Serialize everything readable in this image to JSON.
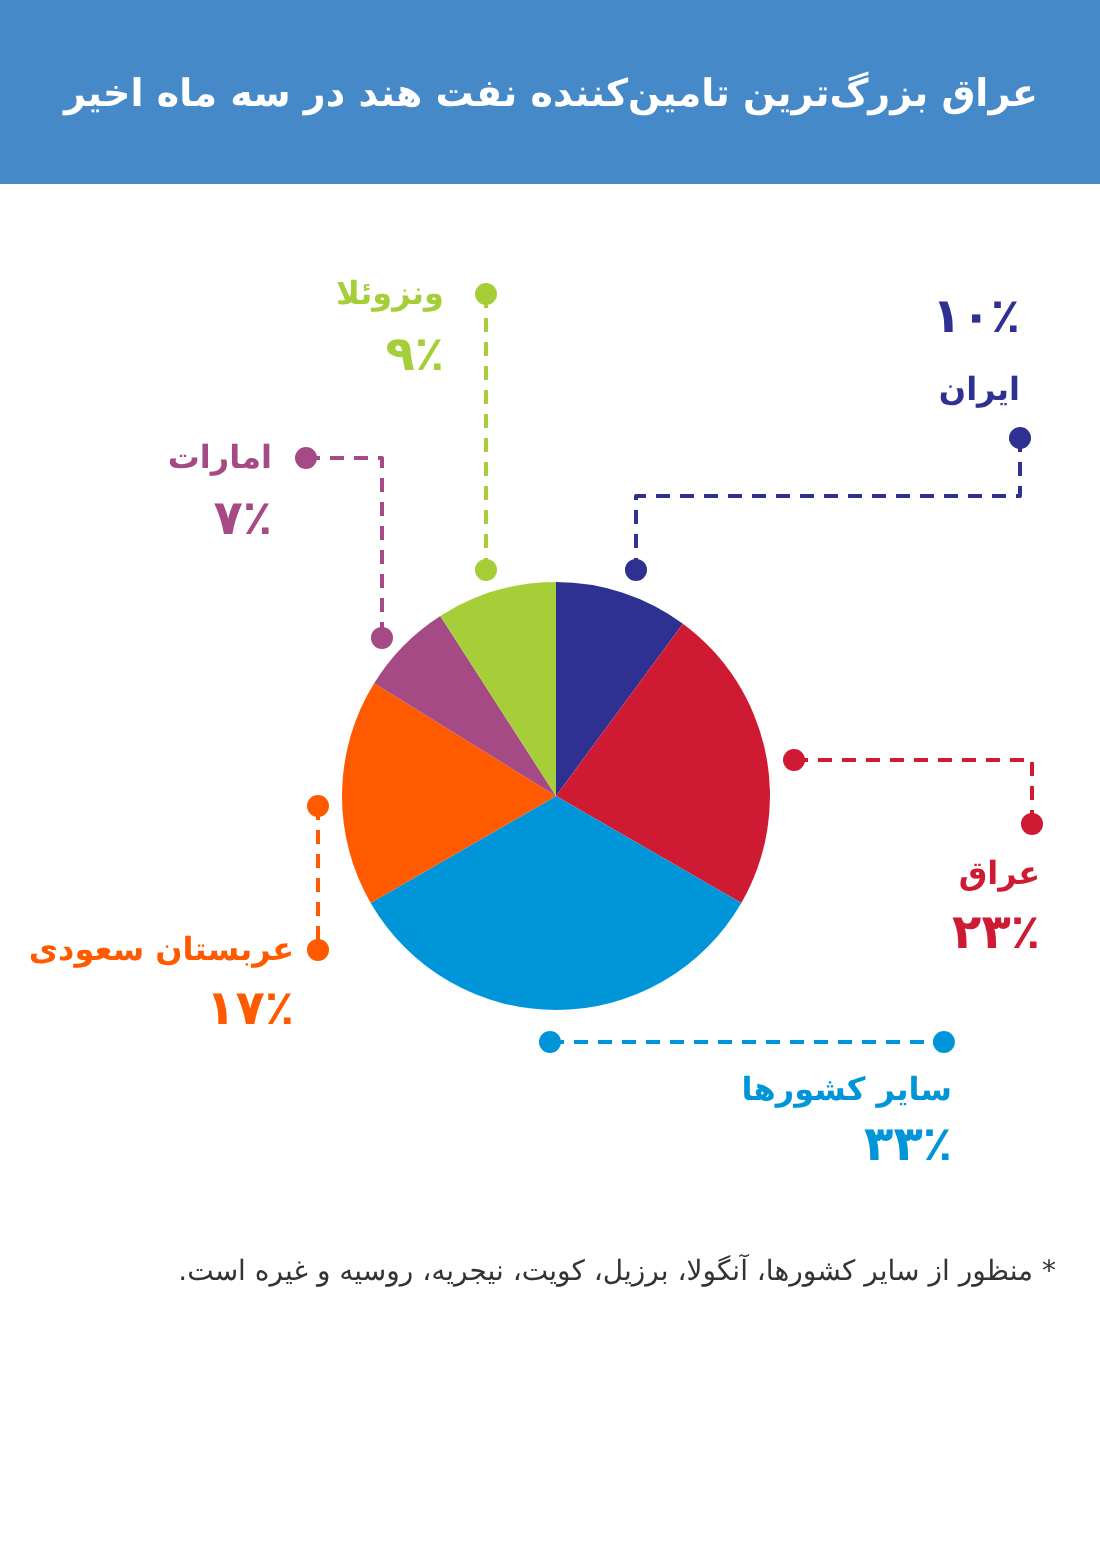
{
  "chart_data": {
    "type": "pie",
    "title": "عراق بزرگ‌ترین تامین‌کننده نفت هند در سه ماه اخیر",
    "categories": [
      "ایران",
      "عراق",
      "سایر کشورها",
      "عربستان سعودی",
      "امارات",
      "ونزوئلا"
    ],
    "values": [
      10,
      23,
      33,
      17,
      7,
      9
    ],
    "colors": [
      "#2e3192",
      "#cf1a34",
      "#0095d9",
      "#ff5a00",
      "#a54a84",
      "#a6ce39"
    ],
    "value_labels": [
      "۱۰٪",
      "۲۳٪",
      "۳۳٪",
      "۱۷٪",
      "۷٪",
      "۹٪"
    ],
    "annotations": [
      "* منظور از سایر کشورها، آنگولا، برزیل، کویت، نیجریه، روسیه و غیره است."
    ]
  }
}
